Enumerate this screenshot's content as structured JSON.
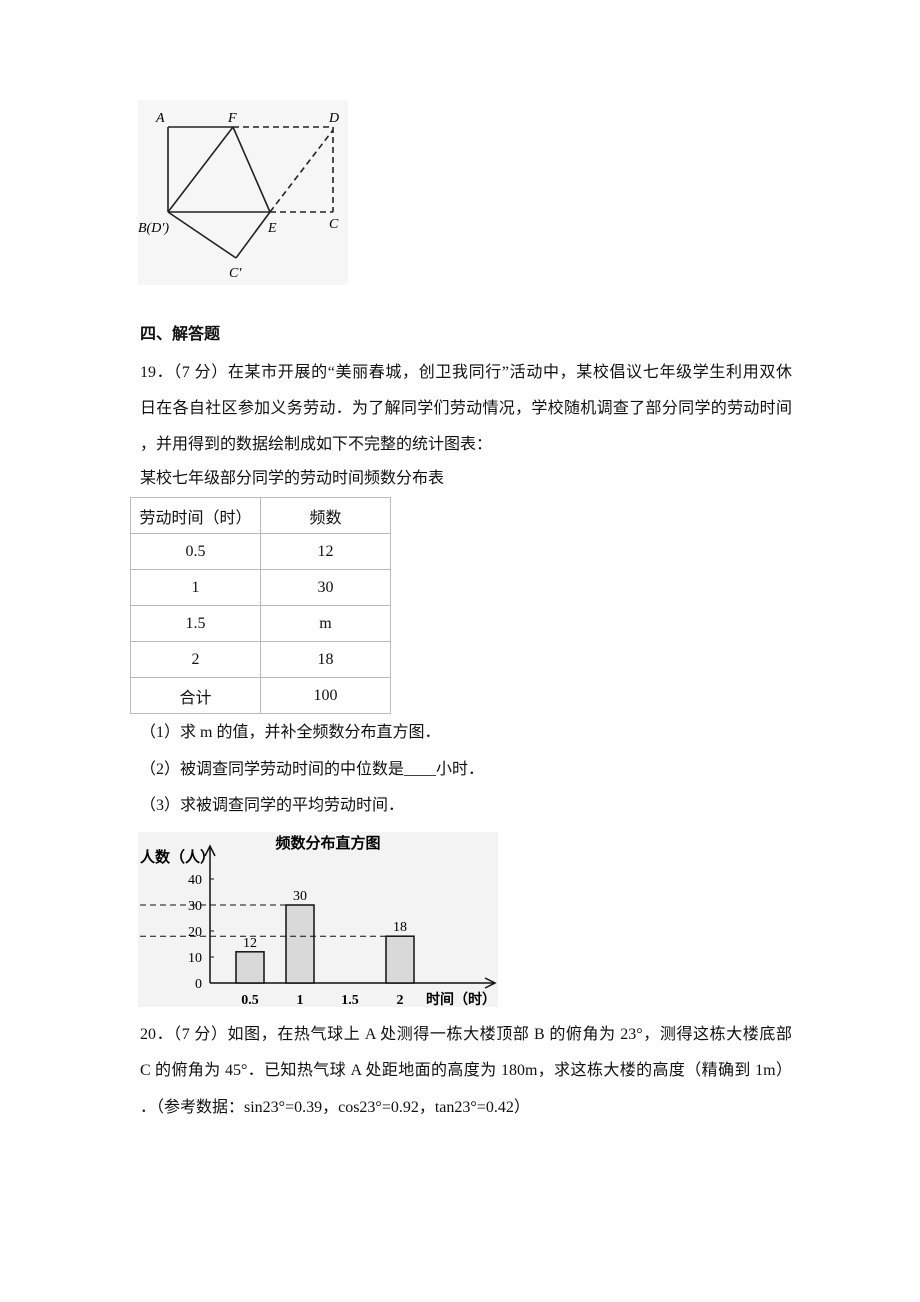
{
  "figure": {
    "labels": [
      "A",
      "F",
      "D",
      "B(D′)",
      "E",
      "C",
      "C′"
    ]
  },
  "section_title": "四、解答题",
  "q19": {
    "lines": [
      "19．（7 分）在某市开展的“美丽春城，创卫我同行”活动中，某校倡议七年级学生利用双休",
      "日在各自社区参加义务劳动．为了解同学们劳动情况，学校随机调查了部分同学的劳动时间",
      "，并用得到的数据绘制成如下不完整的统计图表："
    ],
    "table_caption": "某校七年级部分同学的劳动时间频数分布表",
    "table": {
      "header": [
        "劳动时间（时）",
        "频数"
      ],
      "rows": [
        [
          "0.5",
          "12"
        ],
        [
          "1",
          "30"
        ],
        [
          "1.5",
          "m"
        ],
        [
          "2",
          "18"
        ],
        [
          "合计",
          "100"
        ]
      ]
    },
    "sub_questions": [
      "（1）求 m 的值，并补全频数分布直方图．",
      "（2）被调查同学劳动时间的中位数是____小时．",
      "（3）求被调查同学的平均劳动时间．"
    ]
  },
  "histogram": {
    "type": "bar",
    "title": "频数分布直方图",
    "y_label": "人数（人）",
    "x_label": "时间（时）",
    "categories": [
      0.5,
      1,
      1.5,
      2
    ],
    "values": [
      12,
      30,
      null,
      18
    ],
    "color": "#d9d9d9",
    "ylim": [
      0,
      50
    ],
    "yticks": [
      0,
      10,
      20,
      30,
      40
    ]
  },
  "q20": {
    "lines": [
      "20．（7 分）如图，在热气球上 A 处测得一栋大楼顶部 B 的俯角为 23°，测得这栋大楼底部",
      "C 的俯角为 45°．已知热气球 A 处距地面的高度为 180m，求这栋大楼的高度（精确到 1m）",
      "．（参考数据：sin23°=0.39，cos23°=0.92，tan23°=0.42）"
    ]
  }
}
